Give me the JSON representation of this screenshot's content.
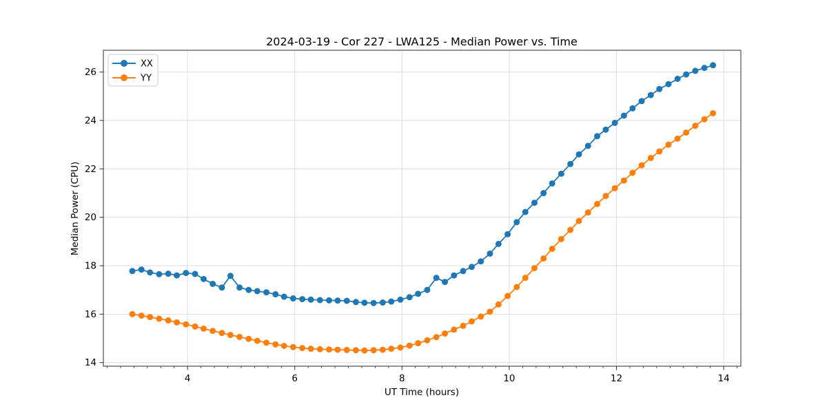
{
  "figure": {
    "background": "#ffffff",
    "grid_color": "#dedede",
    "spine_color": "#2b2b2b",
    "text_color": "#000000"
  },
  "chart_data": {
    "type": "line",
    "title": "2024-03-19 - Cor 227 - LWA125 - Median Power vs. Time",
    "xlabel": "UT Time (hours)",
    "ylabel": "Median Power (CPU)",
    "xlim": [
      2.43,
      14.32
    ],
    "ylim": [
      13.85,
      26.9
    ],
    "x_ticks": [
      4,
      6,
      8,
      10,
      12,
      14
    ],
    "y_ticks": [
      14,
      16,
      18,
      20,
      22,
      24,
      26
    ],
    "x_minor_tick_step": 0.25,
    "grid": true,
    "legend_position": "upper-left",
    "marker": "circle",
    "x": [
      2.97,
      3.14,
      3.3,
      3.47,
      3.64,
      3.8,
      3.97,
      4.14,
      4.3,
      4.47,
      4.64,
      4.8,
      4.97,
      5.14,
      5.3,
      5.47,
      5.64,
      5.8,
      5.97,
      6.14,
      6.3,
      6.47,
      6.64,
      6.8,
      6.97,
      7.14,
      7.3,
      7.47,
      7.64,
      7.8,
      7.97,
      8.14,
      8.3,
      8.47,
      8.64,
      8.8,
      8.97,
      9.14,
      9.3,
      9.47,
      9.64,
      9.8,
      9.97,
      10.14,
      10.3,
      10.47,
      10.64,
      10.8,
      10.97,
      11.14,
      11.3,
      11.47,
      11.64,
      11.8,
      11.97,
      12.14,
      12.3,
      12.47,
      12.64,
      12.8,
      12.97,
      13.14,
      13.3,
      13.47,
      13.64,
      13.8
    ],
    "series": [
      {
        "name": "XX",
        "color": "#1f77b4",
        "values": [
          17.78,
          17.84,
          17.72,
          17.65,
          17.67,
          17.6,
          17.7,
          17.66,
          17.45,
          17.25,
          17.1,
          17.58,
          17.1,
          17.0,
          16.95,
          16.9,
          16.82,
          16.72,
          16.65,
          16.62,
          16.6,
          16.58,
          16.57,
          16.56,
          16.55,
          16.5,
          16.47,
          16.46,
          16.48,
          16.52,
          16.6,
          16.7,
          16.84,
          17.0,
          17.5,
          17.33,
          17.6,
          17.78,
          17.95,
          18.18,
          18.5,
          18.9,
          19.3,
          19.8,
          20.22,
          20.6,
          21.0,
          21.4,
          21.8,
          22.2,
          22.6,
          22.95,
          23.35,
          23.62,
          23.9,
          24.2,
          24.5,
          24.8,
          25.05,
          25.3,
          25.5,
          25.72,
          25.9,
          26.05,
          26.17,
          26.28
        ]
      },
      {
        "name": "YY",
        "color": "#ff7f0e",
        "values": [
          16.0,
          15.94,
          15.88,
          15.81,
          15.74,
          15.66,
          15.58,
          15.49,
          15.4,
          15.31,
          15.22,
          15.14,
          15.06,
          14.98,
          14.9,
          14.82,
          14.75,
          14.69,
          14.64,
          14.6,
          14.57,
          14.55,
          14.54,
          14.53,
          14.52,
          14.51,
          14.5,
          14.51,
          14.53,
          14.57,
          14.62,
          14.7,
          14.8,
          14.92,
          15.05,
          15.2,
          15.36,
          15.52,
          15.7,
          15.9,
          16.1,
          16.4,
          16.75,
          17.12,
          17.5,
          17.9,
          18.3,
          18.7,
          19.1,
          19.48,
          19.85,
          20.2,
          20.55,
          20.88,
          21.2,
          21.52,
          21.84,
          22.15,
          22.45,
          22.72,
          23.0,
          23.25,
          23.5,
          23.78,
          24.05,
          24.3
        ]
      }
    ]
  }
}
